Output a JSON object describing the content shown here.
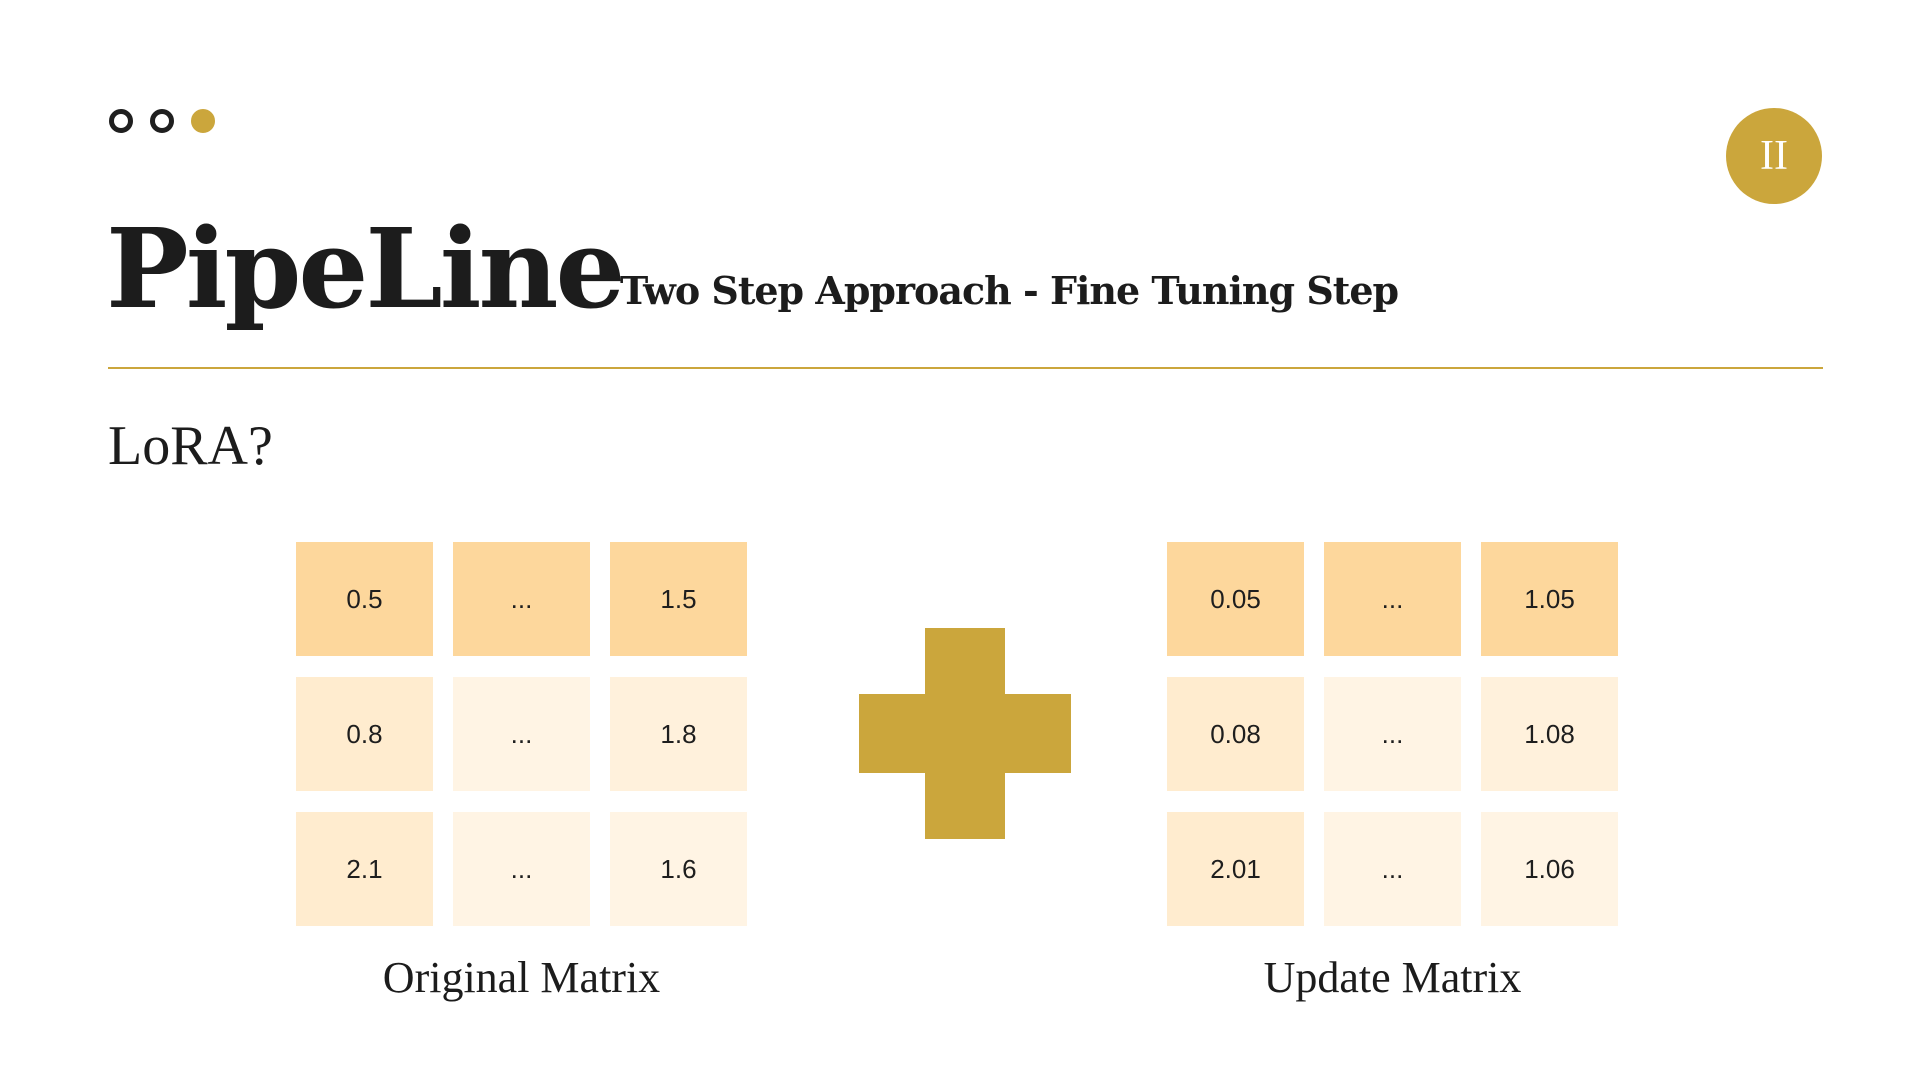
{
  "colors": {
    "accent": "#cba63c",
    "text": "#1c1c1c",
    "cell_header": "#fdd79c",
    "cell_body": "#ffeccf"
  },
  "slide": {
    "section_marker": "II",
    "title": "PipeLine",
    "subtitle": "Two Step Approach - Fine Tuning Step",
    "question": "LoRA?"
  },
  "matrices": {
    "original": {
      "caption": "Original Matrix",
      "rows": [
        [
          "0.5",
          "...",
          "1.5"
        ],
        [
          "0.8",
          "...",
          "1.8"
        ],
        [
          "2.1",
          "...",
          "1.6"
        ]
      ]
    },
    "operator_icon": "plus-icon",
    "update": {
      "caption": "Update Matrix",
      "rows": [
        [
          "0.05",
          "...",
          "1.05"
        ],
        [
          "0.08",
          "...",
          "1.08"
        ],
        [
          "2.01",
          "...",
          "1.06"
        ]
      ]
    }
  }
}
